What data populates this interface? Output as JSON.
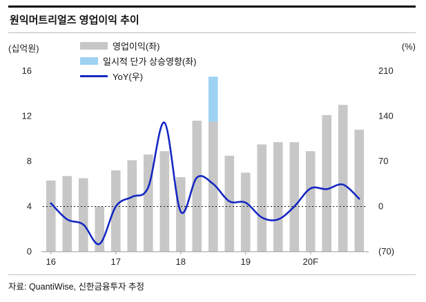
{
  "header": {
    "title": "원익머트리얼즈 영업이익 추이"
  },
  "axes": {
    "left_unit": "(십억원)",
    "right_unit": "(%)"
  },
  "legend": [
    {
      "label": "영업이익(좌)",
      "type": "bar",
      "color": "#c7c7c7"
    },
    {
      "label": "일시적 단가 상승영향(좌)",
      "type": "bar",
      "color": "#9fd2f2"
    },
    {
      "label": "YoY(우)",
      "type": "line",
      "color": "#1426c2"
    }
  ],
  "footer": {
    "source": "자료: QuantiWise, 신한금융투자 추정"
  },
  "chart_data": {
    "type": "bar+line",
    "title": "원익머트리얼즈 영업이익 추이",
    "x_tick_labels": [
      "16",
      "17",
      "18",
      "19",
      "20F"
    ],
    "x_tick_indices": [
      0,
      4,
      8,
      12,
      16
    ],
    "left_axis": {
      "label": "(십억원)",
      "range": [
        0,
        16
      ],
      "ticks": [
        0,
        4,
        8,
        12,
        16
      ],
      "tick_labels": [
        "0",
        "4",
        "8",
        "12",
        "16"
      ]
    },
    "right_axis": {
      "label": "(%)",
      "range": [
        -70,
        210
      ],
      "ticks": [
        -70,
        0,
        70,
        140,
        210
      ],
      "tick_labels": [
        "(70)",
        "0",
        "70",
        "140",
        "210"
      ]
    },
    "zero_line": {
      "axis": "right",
      "value": 0,
      "style": "dotted"
    },
    "series": [
      {
        "name": "영업이익(좌)",
        "type": "bar",
        "axis": "left",
        "color": "#c7c7c7",
        "values": [
          6.3,
          6.7,
          6.5,
          4.0,
          7.2,
          8.1,
          8.6,
          8.9,
          6.6,
          11.6,
          11.5,
          8.5,
          7.0,
          9.5,
          9.7,
          9.7,
          8.9,
          12.1,
          13.0,
          10.8
        ]
      },
      {
        "name": "일시적 단가 상승영향(좌)",
        "type": "bar-stack",
        "axis": "left",
        "color": "#9fd2f2",
        "values": [
          0,
          0,
          0,
          0,
          0,
          0,
          0,
          0,
          0,
          0,
          4.0,
          0,
          0,
          0,
          0,
          0,
          0,
          0,
          0,
          0
        ]
      },
      {
        "name": "YoY(우)",
        "type": "line",
        "axis": "right",
        "color": "#1426c2",
        "values": [
          5,
          -20,
          -28,
          -58,
          0,
          15,
          30,
          130,
          -8,
          45,
          35,
          8,
          6,
          -17,
          -20,
          0,
          28,
          27,
          34,
          12
        ]
      }
    ]
  }
}
